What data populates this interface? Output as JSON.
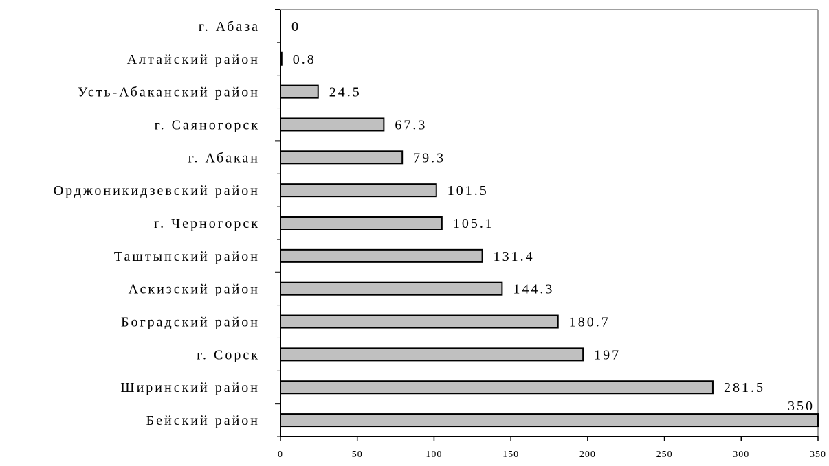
{
  "chart_data": {
    "type": "bar",
    "orientation": "horizontal",
    "categories": [
      "г. Абаза",
      "Алтайский район",
      "Усть-Абаканский район",
      "г. Саяногорск",
      "г. Абакан",
      "Орджоникидзевский район",
      "г. Черногорск",
      "Таштыпский район",
      "Аскизский район",
      "Боградский район",
      "г. Сорск",
      "Ширинский район",
      "Бейский район"
    ],
    "values": [
      0,
      0.8,
      24.5,
      67.3,
      79.3,
      101.5,
      105.1,
      131.4,
      144.3,
      180.7,
      197,
      281.5,
      350
    ],
    "value_labels": [
      "0",
      "0.8",
      "24.5",
      "67.3",
      "79.3",
      "101.5",
      "105.1",
      "131.4",
      "144.3",
      "180.7",
      "197",
      "281.5",
      "350"
    ],
    "xlim": [
      0,
      350
    ],
    "xticks": [
      0,
      50,
      100,
      150,
      200,
      250,
      300,
      350
    ],
    "xtick_labels": [
      "0",
      "50",
      "100",
      "150",
      "200",
      "250",
      "300",
      "350"
    ],
    "title": "",
    "xlabel": "",
    "ylabel": "",
    "grid": false,
    "legend": "none",
    "bar_color": "#c0c0c0",
    "bar_edge_color": "#000000",
    "frame_color": "#808080"
  }
}
